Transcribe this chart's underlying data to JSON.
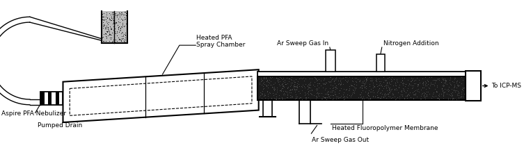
{
  "fig_width": 7.53,
  "fig_height": 2.13,
  "dpi": 100,
  "bg_color": "#ffffff",
  "lc": "#000000",
  "labels": {
    "aspire": "Aspire PFA Nebulizer",
    "drain": "Pumped Drain",
    "chamber": "Heated PFA\nSpray Chamber",
    "ar_in": "Ar Sweep Gas In",
    "n2": "Nitrogen Addition",
    "membrane": "Heated Fluoropolymer Membrane",
    "ar_out": "Ar Sweep Gas Out",
    "icp": "To ICP-MS"
  },
  "fs": 6.5
}
